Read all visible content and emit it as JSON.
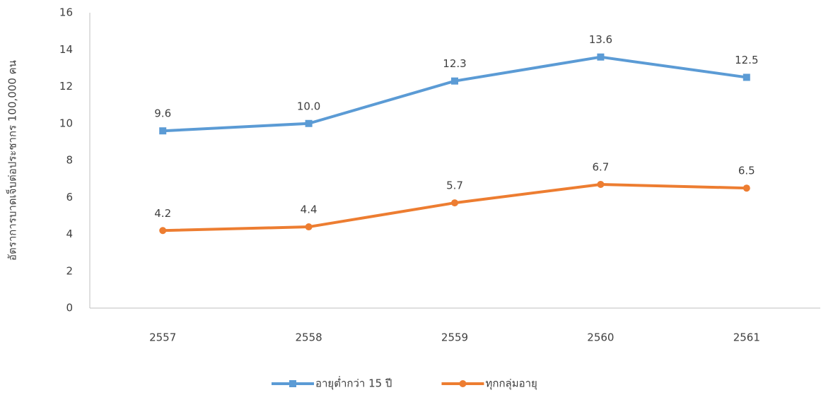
{
  "chart_data": {
    "type": "line",
    "ylabel": "อัตราการบาดเจ็บต่อประชากร 100,000 คน",
    "categories": [
      "2557",
      "2558",
      "2559",
      "2560",
      "2561"
    ],
    "series": [
      {
        "name": "อายุต่ำกว่า 15 ปี",
        "color": "#5b9bd5",
        "marker": "square",
        "values": [
          9.6,
          10.0,
          12.3,
          13.6,
          12.5
        ],
        "value_labels": [
          "9.6",
          "10.0",
          "12.3",
          "13.6",
          "12.5"
        ]
      },
      {
        "name": "ทุกกลุ่มอายุ",
        "color": "#ed7d31",
        "marker": "circle",
        "values": [
          4.2,
          4.4,
          5.7,
          6.7,
          6.5
        ],
        "value_labels": [
          "4.2",
          "4.4",
          "5.7",
          "6.7",
          "6.5"
        ]
      }
    ],
    "ylim": [
      0,
      16
    ],
    "yticks": [
      0,
      2,
      4,
      6,
      8,
      10,
      12,
      14,
      16
    ],
    "grid": false,
    "legend": "bottom"
  }
}
